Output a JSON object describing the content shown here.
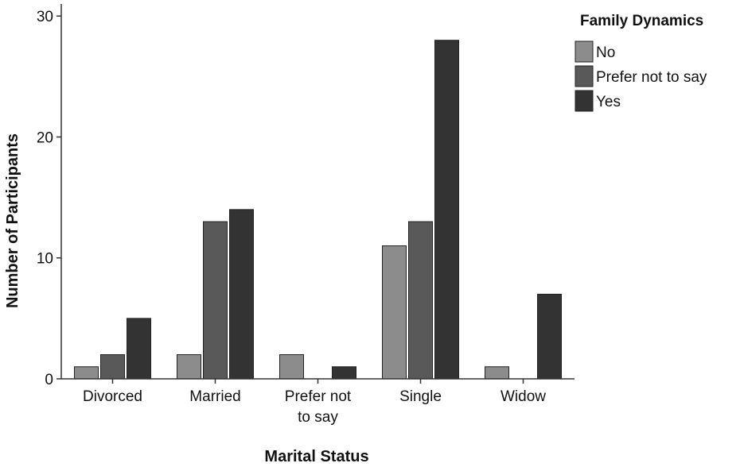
{
  "chart_data": {
    "type": "bar",
    "xlabel": "Marital Status",
    "ylabel": "Number of Participants",
    "ylim": [
      0,
      31
    ],
    "yticks": [
      "0",
      "10",
      "20",
      "30"
    ],
    "ytick_values": [
      0,
      10,
      20,
      30
    ],
    "grid": false,
    "legend_title": "Family Dynamics",
    "legend_placement": "top-right",
    "categories": [
      "Divorced",
      "Married",
      "Prefer not to say",
      "Single",
      "Widow"
    ],
    "category_label_lines": [
      [
        "Divorced"
      ],
      [
        "Married"
      ],
      [
        "Prefer not",
        "to say"
      ],
      [
        "Single"
      ],
      [
        "Widow"
      ]
    ],
    "series": [
      {
        "name": "No",
        "color": "#8c8c8c",
        "values": [
          1,
          2,
          2,
          11,
          1
        ]
      },
      {
        "name": "Prefer not to say",
        "color": "#595959",
        "values": [
          2,
          13,
          0,
          13,
          0
        ]
      },
      {
        "name": "Yes",
        "color": "#333333",
        "values": [
          5,
          14,
          1,
          28,
          7
        ]
      }
    ]
  }
}
